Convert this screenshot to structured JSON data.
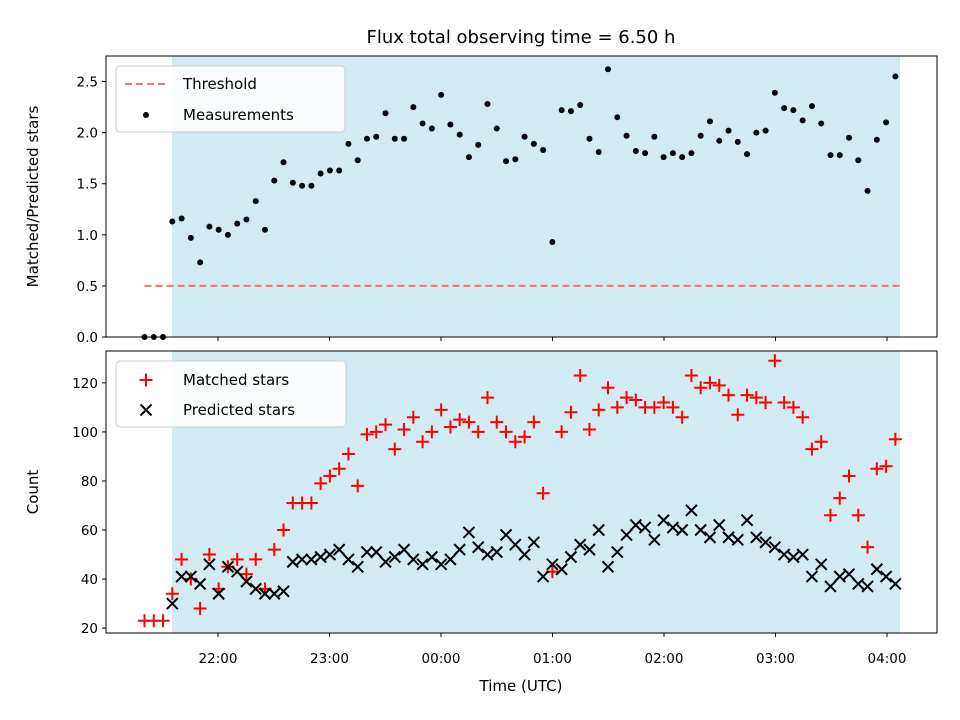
{
  "chart_data": {
    "type": "scatter",
    "title": "Flux total observing time = 6.50 h",
    "xlabel": "Time (UTC)",
    "x_tick_labels": [
      "22:00",
      "23:00",
      "00:00",
      "01:00",
      "02:00",
      "03:00",
      "04:00"
    ],
    "colors": {
      "shade": "#add8e6",
      "threshold": "#ff6f6f",
      "measurements": "#000000",
      "matched": "#ff0000",
      "predicted": "#000000"
    },
    "top_panel": {
      "ylabel": "Matched/Predicted stars",
      "ylim": [
        0,
        2.75
      ],
      "y_ticks": [
        "0.0",
        "0.5",
        "1.0",
        "1.5",
        "2.0",
        "2.5"
      ],
      "legend_position": "top-left",
      "series": [
        {
          "name": "Threshold",
          "kind": "dashed-line",
          "value": 0.5
        },
        {
          "name": "Measurements",
          "kind": "points",
          "values": [
            0,
            0,
            0,
            1.13,
            1.16,
            0.97,
            0.73,
            1.08,
            1.05,
            1.0,
            1.11,
            1.15,
            1.33,
            1.05,
            1.53,
            1.71,
            1.51,
            1.48,
            1.48,
            1.6,
            1.63,
            1.63,
            1.89,
            1.73,
            1.94,
            1.96,
            2.19,
            1.94,
            1.94,
            2.25,
            2.09,
            2.04,
            2.37,
            2.08,
            1.98,
            1.76,
            1.88,
            2.28,
            2.04,
            1.72,
            1.74,
            1.96,
            1.89,
            1.83,
            0.93,
            2.22,
            2.21,
            2.27,
            1.94,
            1.81,
            2.62,
            2.15,
            1.97,
            1.82,
            1.8,
            1.96,
            1.76,
            1.8,
            1.76,
            1.8,
            1.97,
            2.11,
            1.92,
            2.02,
            1.91,
            1.79,
            2.0,
            2.02,
            2.39,
            2.24,
            2.22,
            2.12,
            2.26,
            2.09,
            1.78,
            1.78,
            1.95,
            1.73,
            1.43,
            1.93,
            2.1,
            2.55
          ]
        }
      ]
    },
    "bottom_panel": {
      "ylabel": "Count",
      "ylim": [
        18,
        133
      ],
      "y_ticks": [
        "20",
        "40",
        "60",
        "80",
        "100",
        "120"
      ],
      "legend_position": "top-left",
      "series": [
        {
          "name": "Matched stars",
          "marker": "+",
          "values": [
            23,
            23,
            23,
            34,
            48,
            40,
            28,
            50,
            36,
            45,
            48,
            42,
            48,
            36,
            52,
            60,
            71,
            71,
            71,
            79,
            82,
            85,
            91,
            78,
            99,
            100,
            103,
            93,
            101,
            106,
            96,
            100,
            109,
            102,
            105,
            104,
            100,
            114,
            104,
            100,
            96,
            98,
            104,
            75,
            43,
            100,
            108,
            123,
            101,
            109,
            118,
            110,
            114,
            113,
            110,
            110,
            112,
            110,
            106,
            123,
            118,
            120,
            119,
            115,
            107,
            115,
            114,
            112,
            129,
            112,
            110,
            106,
            93,
            96,
            66,
            73,
            82,
            66,
            53,
            85,
            86,
            97
          ]
        },
        {
          "name": "Predicted stars",
          "marker": "x",
          "values": [
            null,
            null,
            null,
            30,
            41,
            41,
            38,
            46,
            34,
            45,
            43,
            39,
            36,
            34,
            34,
            35,
            47,
            48,
            48,
            49,
            50,
            52,
            48,
            45,
            51,
            51,
            47,
            49,
            52,
            48,
            46,
            49,
            46,
            48,
            52,
            59,
            53,
            50,
            51,
            58,
            54,
            50,
            55,
            41,
            46,
            44,
            49,
            54,
            52,
            60,
            45,
            51,
            58,
            62,
            61,
            56,
            64,
            61,
            60,
            68,
            60,
            57,
            62,
            57,
            56,
            64,
            57,
            55,
            53,
            50,
            49,
            50,
            41,
            46,
            37,
            41,
            42,
            38,
            37,
            44,
            41,
            38
          ]
        }
      ]
    }
  }
}
